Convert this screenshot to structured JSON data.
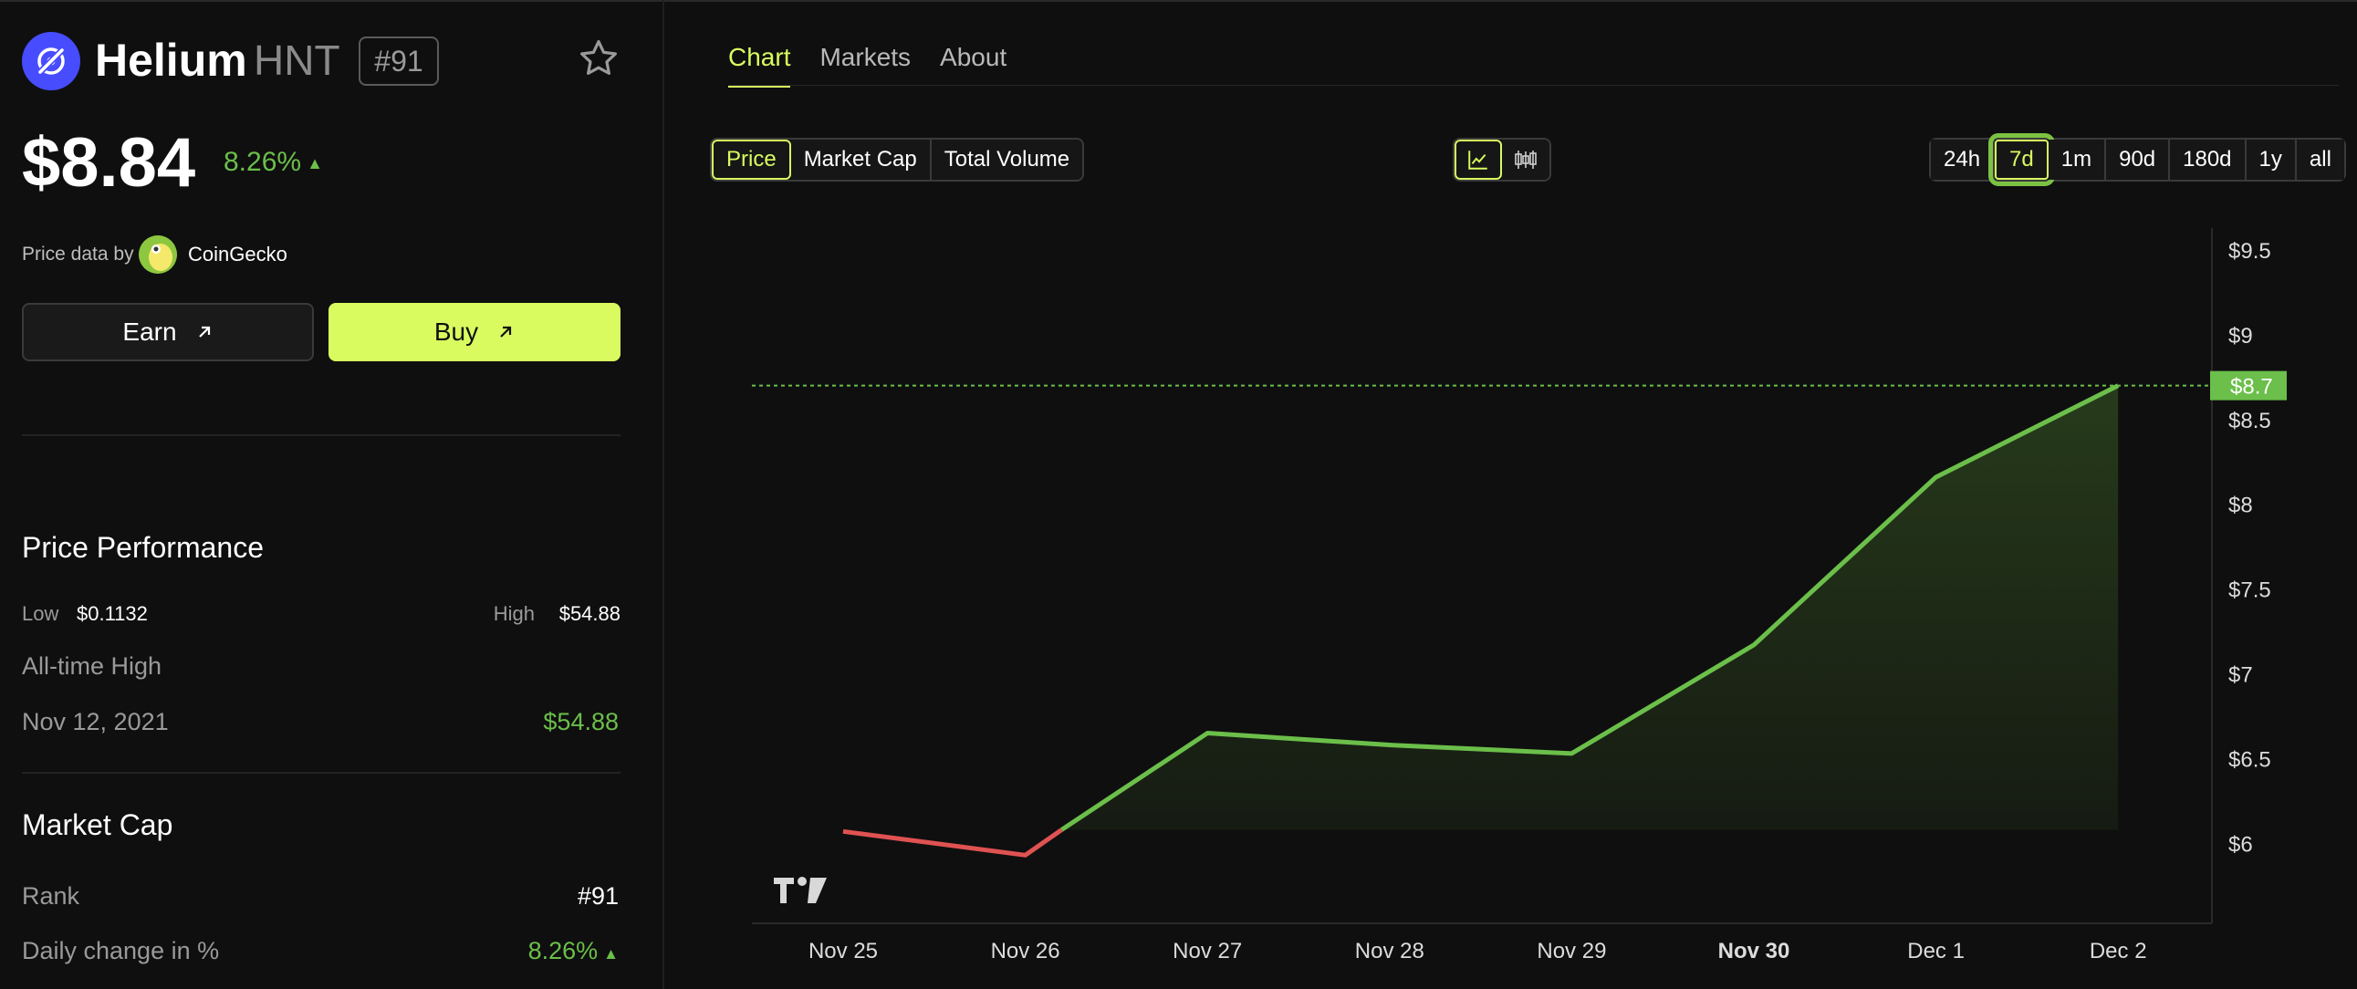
{
  "coin": {
    "name": "Helium",
    "symbol": "HNT",
    "rank": "#91",
    "price": "$8.84",
    "change": "8.26%",
    "change_arrow": "▲"
  },
  "price_data": {
    "label": "Price data by",
    "source": "CoinGecko"
  },
  "actions": {
    "earn": "Earn",
    "buy": "Buy"
  },
  "performance": {
    "title": "Price Performance",
    "low_label": "Low",
    "low_value": "$0.1132",
    "high_label": "High",
    "high_value": "$54.88",
    "ath_label": "All-time High",
    "ath_date": "Nov 12, 2021",
    "ath_value": "$54.88"
  },
  "market_cap": {
    "title": "Market Cap",
    "rank_label": "Rank",
    "rank_value": "#91",
    "daily_label": "Daily change in %",
    "daily_value": "8.26%",
    "daily_arrow": "▲"
  },
  "tabs": [
    "Chart",
    "Markets",
    "About"
  ],
  "active_tab": "Chart",
  "metrics": [
    "Price",
    "Market Cap",
    "Total Volume"
  ],
  "active_metric": "Price",
  "chart_types": [
    "line-chart-icon",
    "candlestick-icon"
  ],
  "ranges": [
    "24h",
    "7d",
    "1m",
    "90d",
    "180d",
    "1y",
    "all"
  ],
  "active_range": "7d",
  "colors": {
    "accent": "#d9fb60",
    "up": "#6bbf4a",
    "down": "#e05252",
    "logo": "#474dff"
  },
  "chart_data": {
    "type": "area",
    "x": [
      "Nov 25",
      "Nov 26",
      "Nov 27",
      "Nov 28",
      "Nov 29",
      "Nov 30",
      "Dec 1",
      "Dec 2"
    ],
    "highlight_x": "Nov 30",
    "series": [
      {
        "points": [
          [
            "Nov 25",
            6.07
          ],
          [
            "Nov 26",
            5.93
          ],
          [
            "Nov 26.2",
            6.08
          ],
          [
            "Nov 27",
            6.65
          ],
          [
            "Nov 28",
            6.58
          ],
          [
            "Nov 29",
            6.53
          ],
          [
            "Nov 30",
            7.17
          ],
          [
            "Dec 1",
            8.16
          ],
          [
            "Dec 2",
            8.7
          ]
        ]
      }
    ],
    "baseline": 6.08,
    "y_ticks": [
      "$9.5",
      "$9",
      "$8.5",
      "$8",
      "$7.5",
      "$7",
      "$6.5",
      "$6"
    ],
    "ylim": [
      5.55,
      9.5
    ],
    "last_price_label": "$8.7",
    "last_price": 8.7
  }
}
